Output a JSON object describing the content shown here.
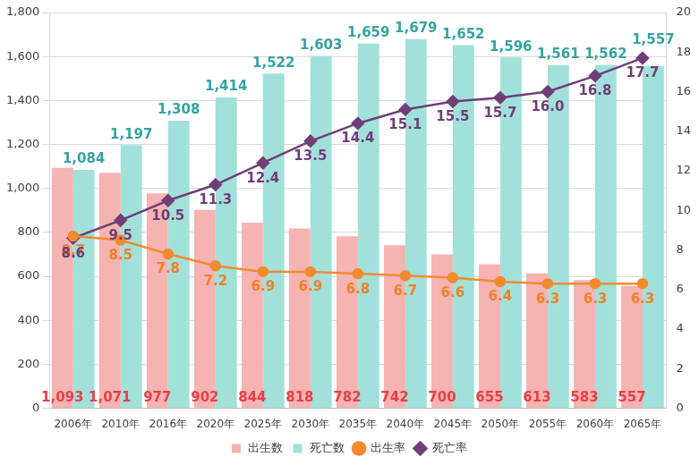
{
  "chart_data": {
    "type": "bar",
    "categories": [
      "2006年",
      "2010年",
      "2016年",
      "2020年",
      "2025年",
      "2030年",
      "2035年",
      "2040年",
      "2045年",
      "2050年",
      "2055年",
      "2060年",
      "2065年"
    ],
    "series": [
      {
        "name": "出生数",
        "type": "bar",
        "color": "#f5b3b1",
        "values": [
          1093,
          1071,
          977,
          902,
          844,
          818,
          782,
          742,
          700,
          655,
          613,
          583,
          557
        ],
        "value_labels": [
          "1,093",
          "1,071",
          "977",
          "902",
          "844",
          "818",
          "782",
          "742",
          "700",
          "655",
          "613",
          "583",
          "557"
        ]
      },
      {
        "name": "死亡数",
        "type": "bar",
        "color": "#a2e1da",
        "values": [
          1084,
          1197,
          1308,
          1414,
          1522,
          1603,
          1659,
          1679,
          1652,
          1596,
          1561,
          1562,
          1557
        ],
        "value_labels": [
          "1,084",
          "1,197",
          "1,308",
          "1,414",
          "1,522",
          "1,603",
          "1,659",
          "1,679",
          "1,652",
          "1,596",
          "1,561",
          "1,562",
          "1,557"
        ]
      },
      {
        "name": "出生率",
        "type": "line",
        "axis": "y2",
        "color": "#f28a30",
        "marker": "circle",
        "values": [
          8.7,
          8.5,
          7.8,
          7.2,
          6.9,
          6.9,
          6.8,
          6.7,
          6.6,
          6.4,
          6.3,
          6.3,
          6.3
        ],
        "value_labels": [
          "8.7",
          "8.5",
          "7.8",
          "7.2",
          "6.9",
          "6.9",
          "6.8",
          "6.7",
          "6.6",
          "6.4",
          "6.3",
          "6.3",
          "6.3"
        ]
      },
      {
        "name": "死亡率",
        "type": "line",
        "axis": "y2",
        "color": "#6f3f78",
        "marker": "diamond",
        "values": [
          8.6,
          9.5,
          10.5,
          11.3,
          12.4,
          13.5,
          14.4,
          15.1,
          15.5,
          15.7,
          16.0,
          16.8,
          17.7
        ],
        "value_labels": [
          "8.6",
          "9.5",
          "10.5",
          "11.3",
          "12.4",
          "13.5",
          "14.4",
          "15.1",
          "15.5",
          "15.7",
          "16.0",
          "16.8",
          "17.7"
        ]
      }
    ],
    "ylim": [
      0,
      1800
    ],
    "yticks": [
      0,
      200,
      400,
      600,
      800,
      {
        "value": 1000,
        "label": "1,000"
      },
      {
        "value": 1200,
        "label": "1,200"
      },
      {
        "value": 1400,
        "label": "1,400"
      },
      {
        "value": 1600,
        "label": "1,600"
      },
      {
        "value": 1800,
        "label": "1,800"
      }
    ],
    "y2lim": [
      0,
      20
    ],
    "y2ticks": [
      0,
      2,
      4,
      6,
      8,
      10,
      12,
      14,
      16,
      18,
      20
    ],
    "grid": true,
    "legend": "bottom",
    "data_labels": true
  }
}
